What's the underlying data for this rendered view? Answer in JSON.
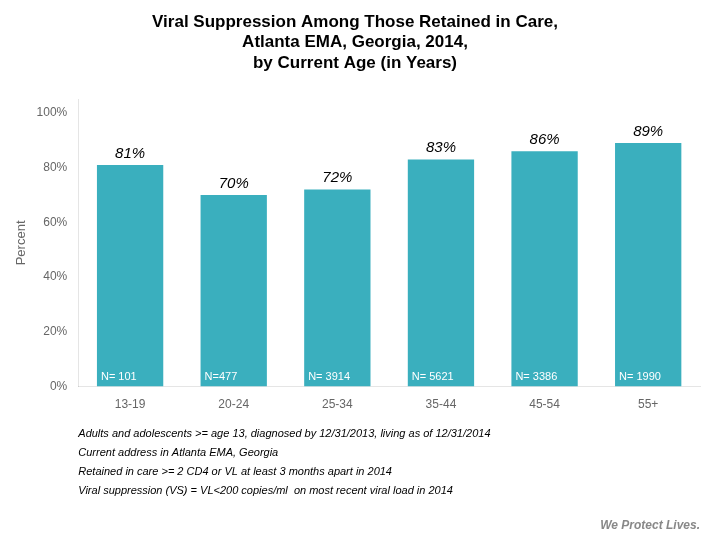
{
  "chart_data": {
    "type": "bar",
    "title": "Viral Suppression Among Those Retained in Care,\nAtlanta EMA, Georgia, 2014,\nby Current Age (in Years)",
    "categories": [
      "13-19",
      "20-24",
      "25-34",
      "35-44",
      "45-54",
      "55+"
    ],
    "values": [
      81,
      70,
      72,
      83,
      86,
      89
    ],
    "value_labels": [
      "81%",
      "70%",
      "72%",
      "83%",
      "86%",
      "89%"
    ],
    "data_labels": true,
    "n_labels": [
      "N= 101",
      "N=477",
      "N= 3914",
      "N= 5621",
      "N= 3386",
      "N= 1990"
    ],
    "color": "#3AAFBE",
    "ylabel": "Percent",
    "ylim": [
      0,
      105
    ],
    "yticks": [
      {
        "value": 0,
        "label": "0%"
      },
      {
        "value": 20,
        "label": "20%"
      },
      {
        "value": 40,
        "label": "40%"
      },
      {
        "value": 60,
        "label": "60%"
      },
      {
        "value": 80,
        "label": "80%"
      },
      {
        "value": 100,
        "label": "100%"
      }
    ],
    "grid": false,
    "annotations": [
      "Adults and adolescents >= age 13, diagnosed by 12/31/2013, living as of 12/31/2014",
      "Current address in Atlanta EMA, Georgia",
      "Retained in care >= 2 CD4 or VL at least 3 months apart in 2014",
      "Viral suppression (VS) = VL<200 copies/ml  on most recent viral load in 2014"
    ],
    "footer": "We Protect Lives."
  }
}
